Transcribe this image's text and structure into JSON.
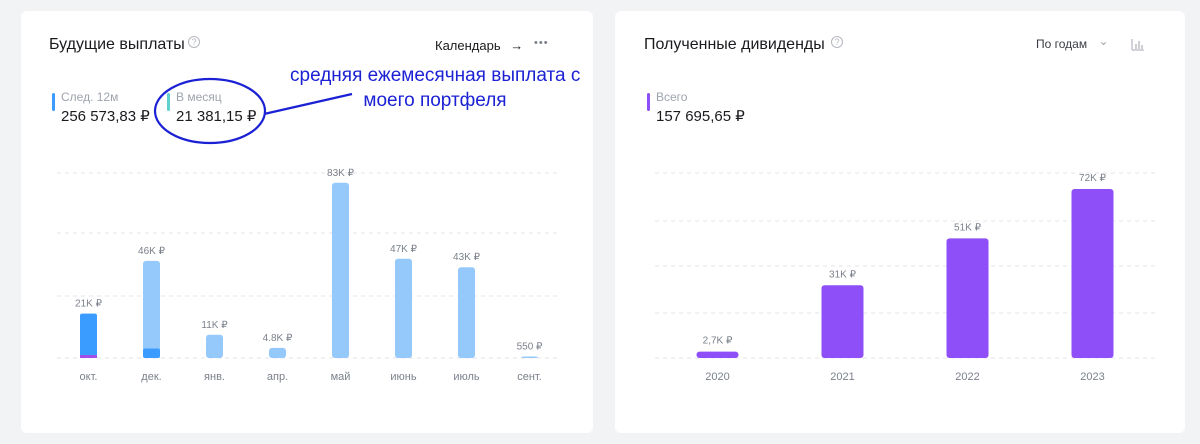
{
  "left_panel": {
    "title": "Будущие выплаты",
    "help_glyph": "?",
    "calendar_label": "Календарь",
    "arrow_glyph": "→",
    "more_glyph": "•••",
    "stats": [
      {
        "label": "След. 12м",
        "value": "256 573,83 ₽",
        "color": "#3b9cff"
      },
      {
        "label": "В месяц",
        "value": "21 381,15 ₽",
        "color": "#5fd1cf"
      }
    ],
    "annotation_lines": [
      "средняя ежемесячная выплата с",
      "моего портфеля"
    ],
    "annotation_color": "#1c22d4"
  },
  "right_panel": {
    "title": "Полученные дивиденды",
    "help_glyph": "?",
    "period_label": "По годам",
    "chevron_glyph": "⌄",
    "stats": [
      {
        "label": "Всего",
        "value": "157 695,65 ₽",
        "color": "#8e4ff8"
      }
    ]
  },
  "chart_data": [
    {
      "type": "bar",
      "categories": [
        "окт.",
        "дек.",
        "янв.",
        "апр.",
        "май",
        "июнь",
        "июль",
        "сент."
      ],
      "values": [
        21000,
        46000,
        11000,
        4800,
        83000,
        47000,
        43000,
        550
      ],
      "value_labels": [
        "21K ₽",
        "46K ₽",
        "11K ₽",
        "4.8K ₽",
        "83K ₽",
        "47K ₽",
        "43K ₽",
        "550 ₽"
      ],
      "segments": [
        {
          "received_part": 19500,
          "purple_part": 1500
        },
        {
          "received_part": 4500,
          "purple_part": 0
        },
        {
          "received_part": 0,
          "purple_part": 0
        },
        {
          "received_part": 0,
          "purple_part": 0
        },
        {
          "received_part": 0,
          "purple_part": 0
        },
        {
          "received_part": 0,
          "purple_part": 0
        },
        {
          "received_part": 0,
          "purple_part": 0
        },
        {
          "received_part": 0,
          "purple_part": 0
        }
      ],
      "ylim": [
        0,
        90000
      ],
      "grid": true,
      "colors": {
        "planned": "#95c9fb",
        "confirmed": "#3b9cff",
        "extra": "#a24ee8",
        "grid": "#e4e6ea",
        "label": "#7b808b"
      }
    },
    {
      "type": "bar",
      "categories": [
        "2020",
        "2021",
        "2022",
        "2023"
      ],
      "values": [
        2700,
        31000,
        51000,
        72000
      ],
      "value_labels": [
        "2,7K ₽",
        "31K ₽",
        "51K ₽",
        "72K ₽"
      ],
      "ylim": [
        0,
        75000
      ],
      "grid": true,
      "colors": {
        "bar": "#8e4ff8",
        "grid": "#e4e6ea",
        "label": "#7b808b"
      }
    }
  ]
}
